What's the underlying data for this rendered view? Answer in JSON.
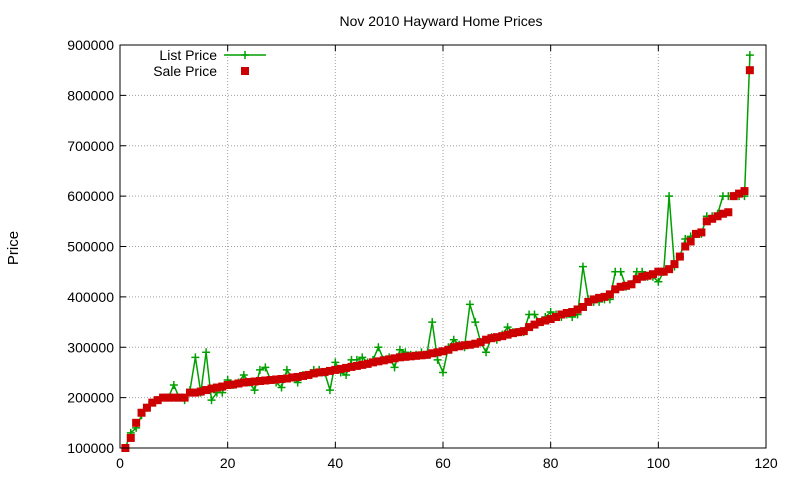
{
  "chart_data": {
    "type": "line",
    "title": "Nov 2010 Hayward Home Prices",
    "xlabel": "",
    "ylabel": "Price",
    "xlim": [
      0,
      120
    ],
    "ylim": [
      100000,
      900000
    ],
    "x_ticks": [
      "0",
      "20",
      "40",
      "60",
      "80",
      "100",
      "120"
    ],
    "y_ticks": [
      "100000",
      "200000",
      "300000",
      "400000",
      "500000",
      "600000",
      "700000",
      "800000",
      "900000"
    ],
    "grid": true,
    "legend_position": "top-left",
    "series": [
      {
        "name": "List Price",
        "style": "line-with-plus-markers",
        "color": "#00a000",
        "values": [
          100000,
          130000,
          140000,
          165000,
          180000,
          190000,
          195000,
          200000,
          200000,
          225000,
          200000,
          195000,
          215000,
          280000,
          210000,
          290000,
          195000,
          210000,
          210000,
          235000,
          225000,
          230000,
          245000,
          230000,
          215000,
          255000,
          260000,
          235000,
          230000,
          220000,
          255000,
          240000,
          230000,
          245000,
          245000,
          255000,
          255000,
          250000,
          215000,
          270000,
          250000,
          245000,
          275000,
          275000,
          280000,
          270000,
          275000,
          300000,
          275000,
          280000,
          260000,
          295000,
          290000,
          285000,
          285000,
          290000,
          285000,
          350000,
          275000,
          250000,
          300000,
          315000,
          305000,
          300000,
          385000,
          350000,
          310000,
          290000,
          320000,
          315000,
          325000,
          340000,
          330000,
          330000,
          330000,
          365000,
          365000,
          350000,
          360000,
          370000,
          365000,
          360000,
          365000,
          360000,
          365000,
          460000,
          395000,
          390000,
          390000,
          395000,
          395000,
          450000,
          450000,
          420000,
          425000,
          450000,
          450000,
          440000,
          440000,
          430000,
          450000,
          600000,
          460000,
          480000,
          515000,
          520000,
          525000,
          525000,
          560000,
          560000,
          565000,
          600000,
          600000,
          600000,
          600000,
          600000,
          880000
        ]
      },
      {
        "name": "Sale Price",
        "style": "square-markers",
        "color": "#cc0000",
        "values": [
          100000,
          120000,
          150000,
          170000,
          180000,
          190000,
          195000,
          200000,
          200000,
          200000,
          200000,
          200000,
          210000,
          210000,
          212000,
          215000,
          218000,
          220000,
          222000,
          225000,
          226000,
          228000,
          230000,
          231000,
          232000,
          233000,
          234000,
          235000,
          236000,
          237000,
          238000,
          240000,
          241000,
          243000,
          245000,
          248000,
          250000,
          251000,
          253000,
          255000,
          257000,
          259000,
          261000,
          263000,
          265000,
          267000,
          270000,
          272000,
          274000,
          276000,
          278000,
          280000,
          281000,
          282000,
          283000,
          284000,
          285000,
          288000,
          290000,
          292000,
          295000,
          300000,
          302000,
          304000,
          305000,
          307000,
          310000,
          315000,
          318000,
          320000,
          322000,
          325000,
          328000,
          330000,
          332000,
          340000,
          345000,
          350000,
          353000,
          356000,
          360000,
          365000,
          368000,
          370000,
          375000,
          380000,
          390000,
          395000,
          398000,
          400000,
          405000,
          415000,
          420000,
          422000,
          425000,
          435000,
          440000,
          442000,
          445000,
          450000,
          450000,
          455000,
          465000,
          480000,
          500000,
          510000,
          525000,
          528000,
          550000,
          555000,
          560000,
          565000,
          568000,
          600000,
          605000,
          610000,
          850000
        ]
      }
    ]
  }
}
